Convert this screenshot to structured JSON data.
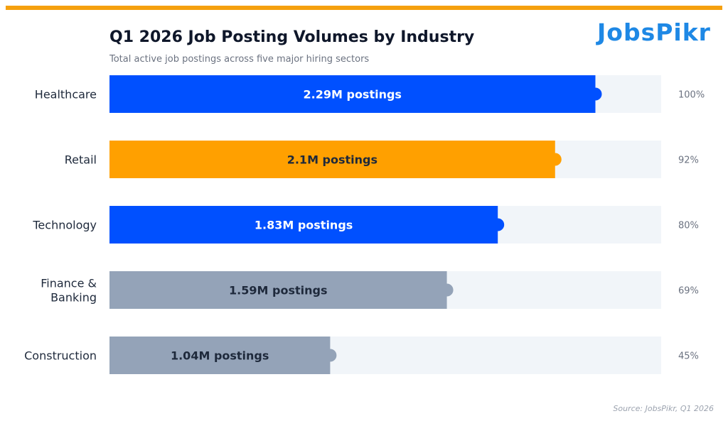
{
  "header": {
    "title": "Q1 2026 Job Posting Volumes by Industry",
    "subtitle": "Total active job postings across five major hiring sectors",
    "logo_text": "JobsPikr"
  },
  "footer": {
    "source": "Source: JobsPikr, Q1 2026"
  },
  "chart_data": {
    "type": "bar",
    "orientation": "horizontal",
    "title": "Q1 2026 Job Posting Volumes by Industry",
    "subtitle": "Total active job postings across five major hiring sectors",
    "categories": [
      "Healthcare",
      "Retail",
      "Technology",
      "Finance & Banking",
      "Construction"
    ],
    "values": [
      2.29,
      2.1,
      1.83,
      1.59,
      1.04
    ],
    "unit": "M postings",
    "data_labels": [
      "2.29M postings",
      "2.1M postings",
      "1.83M postings",
      "1.59M postings",
      "1.04M postings"
    ],
    "percent_labels": [
      "100%",
      "92%",
      "80%",
      "69%",
      "45%"
    ],
    "xlim": [
      0,
      2.6
    ],
    "grid": false,
    "colors": [
      "#0050ff",
      "#ffa000",
      "#0050ff",
      "#94a3b8",
      "#94a3b8"
    ],
    "label_colors": [
      "#ffffff",
      "#1e293b",
      "#ffffff",
      "#1e293b",
      "#1e293b"
    ],
    "track_color": "#f1f5f9",
    "accent_color": "#f5a00f"
  }
}
